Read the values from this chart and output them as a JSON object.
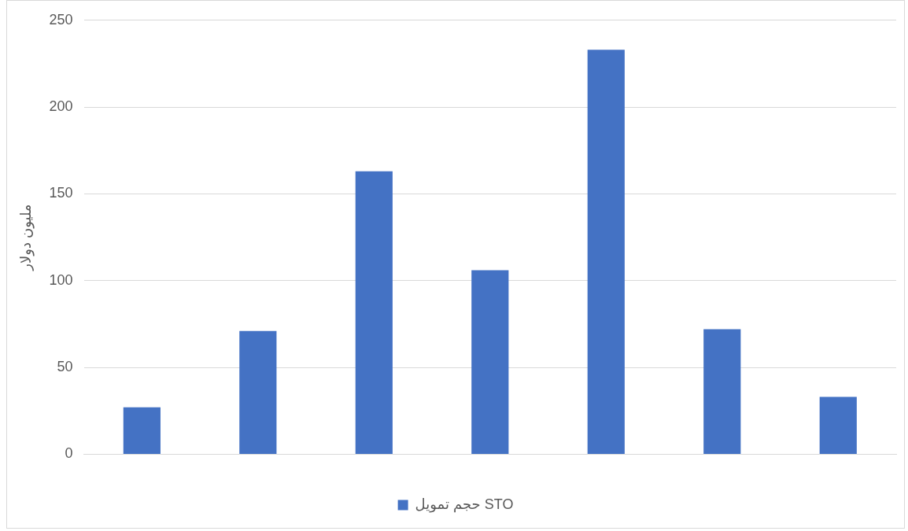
{
  "chart_data": {
    "type": "bar",
    "ylabel": "مليون دولار",
    "categories": [
      null,
      null,
      null,
      null,
      null,
      null,
      null
    ],
    "series": [
      {
        "name": "حجم تمويل STO",
        "color": "#4472c4",
        "values": [
          27,
          71,
          163,
          106,
          233,
          72,
          33
        ]
      }
    ],
    "ylim": [
      0,
      250
    ],
    "yticks": [
      0,
      50,
      100,
      150,
      200,
      250
    ],
    "grid": "y",
    "legend": "bottom"
  }
}
